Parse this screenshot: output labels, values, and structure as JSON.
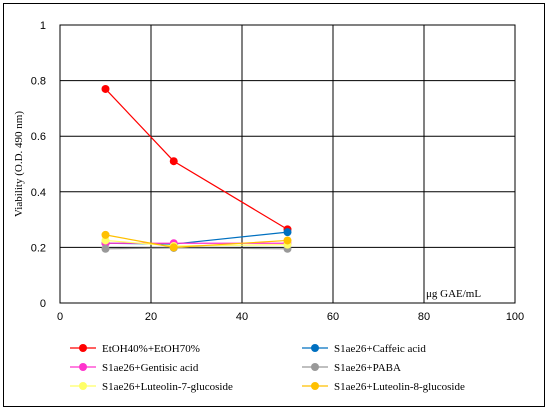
{
  "chart_data": {
    "type": "line",
    "xlabel": "μg GAE/mL",
    "ylabel": "Viability (O.D. 490 nm)",
    "xlim": [
      0,
      100
    ],
    "ylim": [
      0,
      1
    ],
    "x_ticks": [
      "0",
      "20",
      "40",
      "60",
      "80",
      "100"
    ],
    "y_ticks": [
      "0",
      "0.2",
      "0.4",
      "0.6",
      "0.8",
      "1"
    ],
    "grid": true,
    "legend_position": "bottom",
    "series": [
      {
        "name": "EtOH40%+EtOH70%",
        "color": "#ff0000",
        "points": [
          {
            "x": 10,
            "y": 0.77
          },
          {
            "x": 25,
            "y": 0.51
          },
          {
            "x": 50,
            "y": 0.265
          }
        ]
      },
      {
        "name": "S1ae26+Caffeic acid",
        "color": "#0070c0",
        "points": [
          {
            "x": 10,
            "y": 0.215
          },
          {
            "x": 25,
            "y": 0.212
          },
          {
            "x": 50,
            "y": 0.255
          }
        ]
      },
      {
        "name": "S1ae26+Gentisic acid",
        "color": "#ff33cc",
        "points": [
          {
            "x": 10,
            "y": 0.215
          },
          {
            "x": 25,
            "y": 0.215
          },
          {
            "x": 50,
            "y": 0.215
          }
        ]
      },
      {
        "name": "S1ae26+PABA",
        "color": "#999999",
        "points": [
          {
            "x": 10,
            "y": 0.195
          },
          {
            "x": 25,
            "y": 0.198
          },
          {
            "x": 50,
            "y": 0.195
          }
        ]
      },
      {
        "name": "S1ae26+Luteolin-7-glucoside",
        "color": "#ffff66",
        "points": [
          {
            "x": 10,
            "y": 0.225
          },
          {
            "x": 25,
            "y": 0.205
          },
          {
            "x": 50,
            "y": 0.21
          }
        ]
      },
      {
        "name": "S1ae26+Luteolin-8-glucoside",
        "color": "#ffc000",
        "points": [
          {
            "x": 10,
            "y": 0.245
          },
          {
            "x": 25,
            "y": 0.2
          },
          {
            "x": 50,
            "y": 0.225
          }
        ]
      }
    ]
  }
}
